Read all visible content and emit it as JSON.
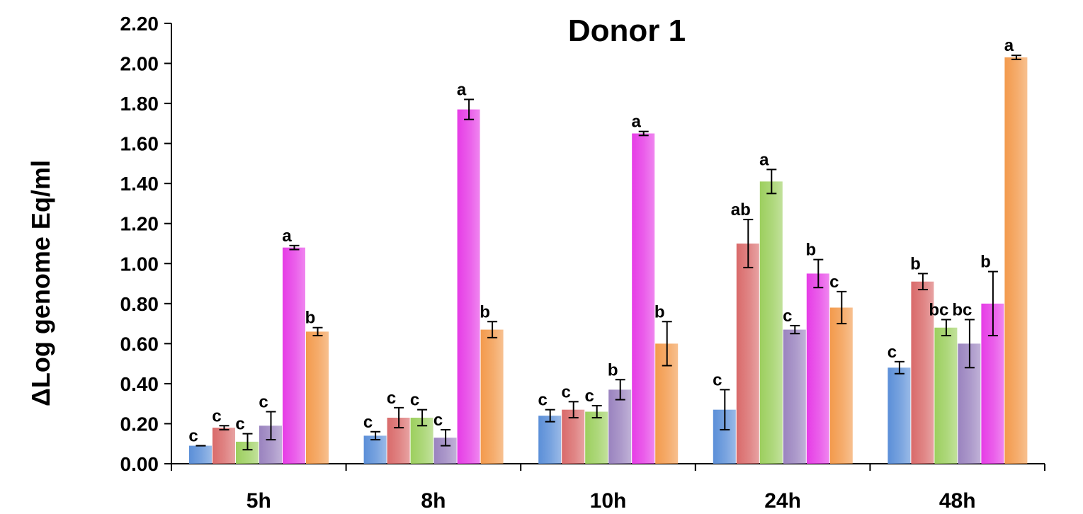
{
  "chart_data": {
    "type": "bar",
    "title": "Donor 1",
    "xlabel": "",
    "ylabel": "ΔLog genome Eq/ml",
    "ylim": [
      0,
      2.2
    ],
    "yticks": [
      "0.00",
      "0.20",
      "0.40",
      "0.60",
      "0.80",
      "1.00",
      "1.20",
      "1.40",
      "1.60",
      "1.80",
      "2.00",
      "2.20"
    ],
    "categories": [
      "5h",
      "8h",
      "10h",
      "24h",
      "48h"
    ],
    "grid": false,
    "legend": "none",
    "series": [
      {
        "color": "#5b8fd8",
        "values": [
          0.09,
          0.14,
          0.24,
          0.27,
          0.48
        ],
        "errors": [
          0.0,
          0.02,
          0.03,
          0.1,
          0.03
        ],
        "letters": [
          "c",
          "c",
          "c",
          "c",
          "c"
        ]
      },
      {
        "color": "#d96a6a",
        "values": [
          0.18,
          0.23,
          0.27,
          1.1,
          0.91
        ],
        "errors": [
          0.01,
          0.05,
          0.04,
          0.12,
          0.04
        ],
        "letters": [
          "c",
          "c",
          "c",
          "ab",
          "b"
        ]
      },
      {
        "color": "#9ccf5e",
        "values": [
          0.11,
          0.23,
          0.26,
          1.41,
          0.68
        ],
        "errors": [
          0.04,
          0.04,
          0.03,
          0.06,
          0.04
        ],
        "letters": [
          "c",
          "c",
          "c",
          "a",
          "bc"
        ]
      },
      {
        "color": "#9a83bf",
        "values": [
          0.19,
          0.13,
          0.37,
          0.67,
          0.6
        ],
        "errors": [
          0.07,
          0.04,
          0.05,
          0.02,
          0.12
        ],
        "letters": [
          "c",
          "c",
          "b",
          "c",
          "bc"
        ]
      },
      {
        "color": "#e63ce6",
        "values": [
          1.08,
          1.77,
          1.65,
          0.95,
          0.8
        ],
        "errors": [
          0.01,
          0.05,
          0.01,
          0.07,
          0.16
        ],
        "letters": [
          "a",
          "a",
          "a",
          "b",
          "b"
        ]
      },
      {
        "color": "#f39a4c",
        "values": [
          0.66,
          0.67,
          0.6,
          0.78,
          2.03
        ],
        "errors": [
          0.02,
          0.04,
          0.11,
          0.08,
          0.01
        ],
        "letters": [
          "b",
          "b",
          "b",
          "c",
          "a"
        ]
      }
    ]
  }
}
